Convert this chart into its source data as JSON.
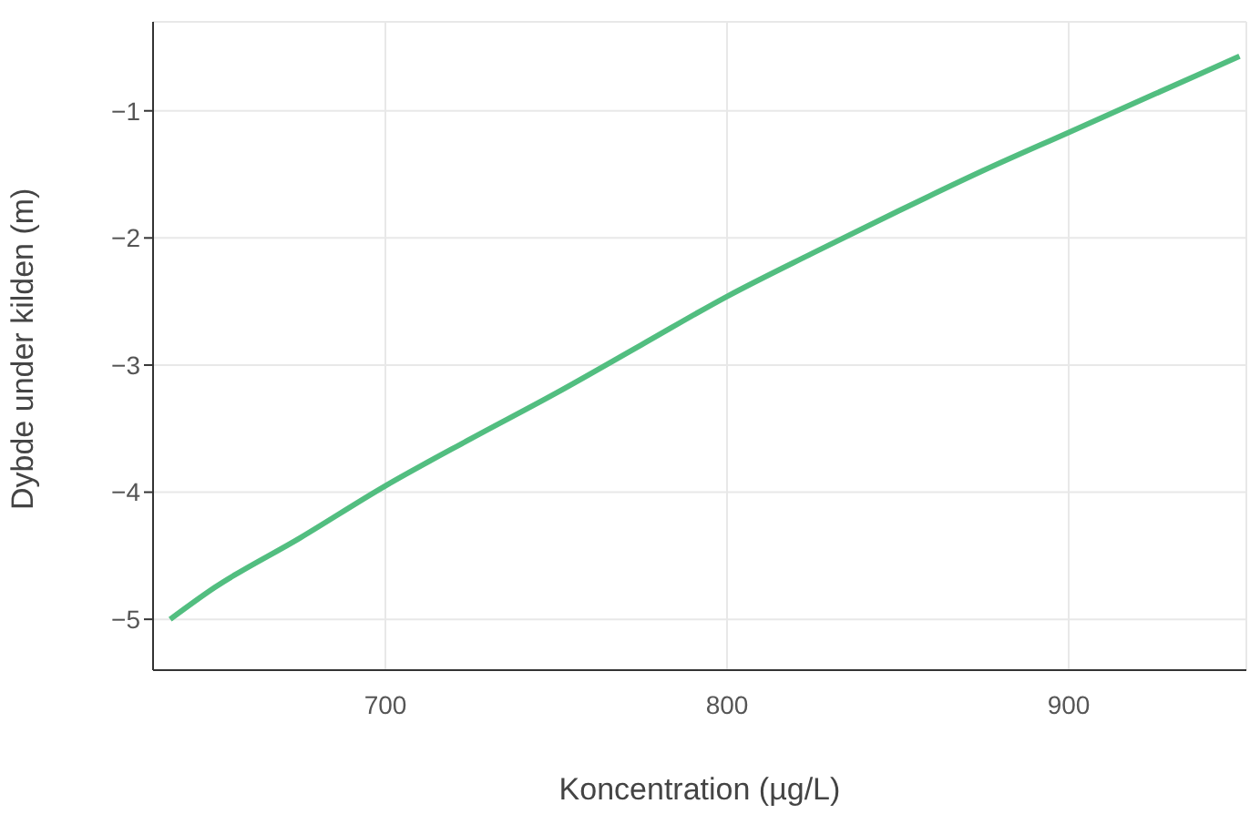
{
  "chart_data": {
    "type": "line",
    "xlabel": "Koncentration (µg/L)",
    "ylabel": "Dybde under kilden (m)",
    "x": [
      637,
      650,
      675,
      700,
      725,
      750,
      775,
      800,
      825,
      850,
      875,
      900,
      925,
      950
    ],
    "series": [
      {
        "color": "#52be80",
        "values": [
          -5.0,
          -4.75,
          -4.36,
          -3.95,
          -3.58,
          -3.22,
          -2.84,
          -2.46,
          -2.12,
          -1.79,
          -1.47,
          -1.17,
          -0.87,
          -0.57
        ]
      }
    ],
    "xlim": [
      632,
      952
    ],
    "ylim": [
      -5.4,
      -0.3
    ],
    "xticks": [
      700,
      800,
      900
    ],
    "yticks": [
      {
        "value": -5,
        "label": "−5"
      },
      {
        "value": -4,
        "label": "−4"
      },
      {
        "value": -3,
        "label": "−3"
      },
      {
        "value": -2,
        "label": "−2"
      },
      {
        "value": -1,
        "label": "−1"
      }
    ],
    "grid": true,
    "marker": "none",
    "line_style": "solid"
  }
}
